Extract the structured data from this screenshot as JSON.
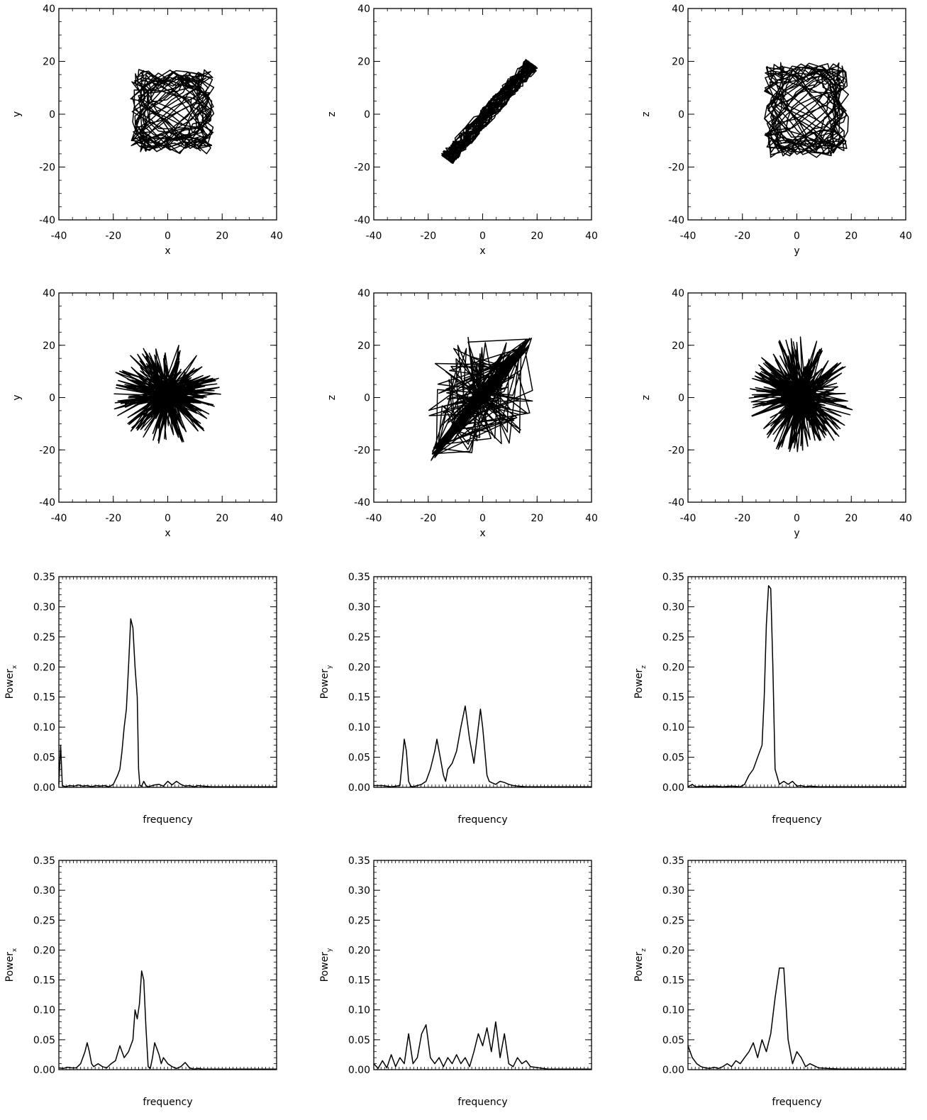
{
  "chart_data": [
    {
      "id": "p1",
      "type": "line",
      "xlabel": "x",
      "ylabel": "y",
      "xlim": [
        -40,
        40
      ],
      "ylim": [
        -40,
        40
      ],
      "xticks": [
        "-40",
        "-20",
        "0",
        "20",
        "40"
      ],
      "yticks": [
        "-40",
        "-20",
        "0",
        "20",
        "40"
      ],
      "trajectory": {
        "pattern": "scribble",
        "x_range": [
          -15,
          18
        ],
        "y_range": [
          -16,
          18
        ]
      }
    },
    {
      "id": "p2",
      "type": "line",
      "xlabel": "x",
      "ylabel": "z",
      "xlim": [
        -40,
        40
      ],
      "ylim": [
        -40,
        40
      ],
      "xticks": [
        "-40",
        "-20",
        "0",
        "20",
        "40"
      ],
      "yticks": [
        "-40",
        "-20",
        "0",
        "20",
        "40"
      ],
      "trajectory": {
        "pattern": "diagonal",
        "x_range": [
          -15,
          20
        ],
        "y_range": [
          -19,
          21
        ]
      }
    },
    {
      "id": "p3",
      "type": "line",
      "xlabel": "y",
      "ylabel": "z",
      "xlim": [
        -40,
        40
      ],
      "ylim": [
        -40,
        40
      ],
      "xticks": [
        "-40",
        "-20",
        "0",
        "20",
        "40"
      ],
      "yticks": [
        "-40",
        "-20",
        "0",
        "20",
        "40"
      ],
      "trajectory": {
        "pattern": "scribble",
        "x_range": [
          -13,
          20
        ],
        "y_range": [
          -18,
          21
        ]
      }
    },
    {
      "id": "p4",
      "type": "line",
      "xlabel": "x",
      "ylabel": "y",
      "xlim": [
        -40,
        40
      ],
      "ylim": [
        -40,
        40
      ],
      "xticks": [
        "-40",
        "-20",
        "0",
        "20",
        "40"
      ],
      "yticks": [
        "-40",
        "-20",
        "0",
        "20",
        "40"
      ],
      "trajectory": {
        "pattern": "star",
        "x_range": [
          -21,
          20
        ],
        "y_range": [
          -18,
          21
        ]
      }
    },
    {
      "id": "p5",
      "type": "line",
      "xlabel": "x",
      "ylabel": "z",
      "xlim": [
        -40,
        40
      ],
      "ylim": [
        -40,
        40
      ],
      "xticks": [
        "-40",
        "-20",
        "0",
        "20",
        "40"
      ],
      "yticks": [
        "-40",
        "-20",
        "0",
        "20",
        "40"
      ],
      "trajectory": {
        "pattern": "star-diagonal",
        "x_range": [
          -21,
          20
        ],
        "y_range": [
          -24,
          24
        ]
      }
    },
    {
      "id": "p6",
      "type": "line",
      "xlabel": "y",
      "ylabel": "z",
      "xlim": [
        -40,
        40
      ],
      "ylim": [
        -40,
        40
      ],
      "xticks": [
        "-40",
        "-20",
        "0",
        "20",
        "40"
      ],
      "yticks": [
        "-40",
        "-20",
        "0",
        "20",
        "40"
      ],
      "trajectory": {
        "pattern": "star",
        "x_range": [
          -18,
          21
        ],
        "y_range": [
          -23,
          24
        ]
      }
    },
    {
      "id": "p7",
      "type": "line",
      "xlabel": "frequency",
      "ylabel": "Power",
      "ylabel_sub": "x",
      "xlim": [
        0,
        50
      ],
      "ylim": [
        0,
        0.35
      ],
      "yticks": [
        "0.00",
        "0.05",
        "0.10",
        "0.15",
        "0.20",
        "0.25",
        "0.30",
        "0.35"
      ],
      "x": [
        0,
        0.4,
        0.8,
        1.5,
        2.5,
        3.5,
        4.5,
        5.5,
        6.5,
        7.5,
        8.5,
        9.5,
        10.5,
        11.5,
        12.5,
        13.5,
        14,
        14.5,
        15,
        15.5,
        16,
        16.5,
        17,
        17.5,
        18,
        18.3,
        18.6,
        19,
        19.5,
        20,
        20.5,
        21,
        22,
        23,
        24,
        25,
        26,
        27,
        28,
        29,
        30,
        31,
        32,
        33,
        35,
        40,
        50
      ],
      "y": [
        0.005,
        0.07,
        0.003,
        0.001,
        0.003,
        0.002,
        0.004,
        0.002,
        0.003,
        0.001,
        0.003,
        0.002,
        0.003,
        0.001,
        0.005,
        0.02,
        0.03,
        0.06,
        0.1,
        0.13,
        0.2,
        0.28,
        0.265,
        0.2,
        0.15,
        0.03,
        0.003,
        0.002,
        0.01,
        0.003,
        0.001,
        0.002,
        0.004,
        0.005,
        0.002,
        0.01,
        0.004,
        0.01,
        0.005,
        0.002,
        0.003,
        0.001,
        0.003,
        0.002,
        0.001,
        0.001,
        0.001
      ]
    },
    {
      "id": "p8",
      "type": "line",
      "xlabel": "frequency",
      "ylabel": "Power",
      "ylabel_sub": "y",
      "xlim": [
        0,
        50
      ],
      "ylim": [
        0,
        0.35
      ],
      "yticks": [
        "0.00",
        "0.05",
        "0.10",
        "0.15",
        "0.20",
        "0.25",
        "0.30",
        "0.35"
      ],
      "x": [
        0,
        2,
        4,
        6,
        6.5,
        7,
        7.5,
        8,
        8.5,
        9,
        9.5,
        10,
        11,
        12,
        13,
        14,
        14.5,
        15,
        15.5,
        16,
        16.5,
        17,
        18,
        19,
        20,
        21,
        22,
        23,
        24,
        24.5,
        25,
        25.5,
        26,
        26.5,
        27,
        28,
        29,
        30,
        31,
        32,
        33,
        35,
        40,
        45,
        50
      ],
      "y": [
        0.003,
        0.003,
        0.001,
        0.003,
        0.04,
        0.08,
        0.06,
        0.01,
        0.002,
        0.001,
        0.002,
        0.003,
        0.005,
        0.01,
        0.03,
        0.06,
        0.08,
        0.06,
        0.04,
        0.02,
        0.01,
        0.03,
        0.04,
        0.06,
        0.1,
        0.135,
        0.08,
        0.04,
        0.1,
        0.13,
        0.1,
        0.06,
        0.02,
        0.01,
        0.008,
        0.005,
        0.01,
        0.008,
        0.005,
        0.003,
        0.002,
        0.001,
        0.001,
        0.001,
        0.001
      ]
    },
    {
      "id": "p9",
      "type": "line",
      "xlabel": "frequency",
      "ylabel": "Power",
      "ylabel_sub": "z",
      "xlim": [
        0,
        50
      ],
      "ylim": [
        0,
        0.35
      ],
      "yticks": [
        "0.00",
        "0.05",
        "0.10",
        "0.15",
        "0.20",
        "0.25",
        "0.30",
        "0.35"
      ],
      "x": [
        0,
        0.5,
        1,
        1.5,
        2,
        3,
        4,
        6,
        8,
        10,
        12,
        13,
        14,
        15,
        16,
        17,
        17.5,
        18,
        18.5,
        19,
        19.5,
        20,
        21,
        22,
        23,
        24,
        25,
        26,
        27,
        28,
        30,
        32,
        35,
        40,
        50
      ],
      "y": [
        0.001,
        0.003,
        0.005,
        0.002,
        0.001,
        0.002,
        0.001,
        0.002,
        0.001,
        0.002,
        0.001,
        0.005,
        0.02,
        0.03,
        0.05,
        0.07,
        0.15,
        0.27,
        0.335,
        0.33,
        0.2,
        0.03,
        0.005,
        0.01,
        0.005,
        0.01,
        0.002,
        0.003,
        0.001,
        0.002,
        0.001,
        0.001,
        0.001,
        0.001,
        0.001
      ]
    },
    {
      "id": "p10",
      "type": "line",
      "xlabel": "frequency",
      "ylabel": "Power",
      "ylabel_sub": "x",
      "xlim": [
        0,
        50
      ],
      "ylim": [
        0,
        0.35
      ],
      "yticks": [
        "0.00",
        "0.05",
        "0.10",
        "0.15",
        "0.20",
        "0.25",
        "0.30",
        "0.35"
      ],
      "x": [
        0,
        1,
        2,
        3,
        4,
        5,
        6,
        6.5,
        7,
        7.5,
        8,
        9,
        10,
        11,
        12,
        13,
        14,
        15,
        16,
        17,
        17.5,
        18,
        18.5,
        19,
        19.5,
        20,
        20.5,
        21,
        21.5,
        22,
        22.5,
        23,
        23.5,
        24,
        25,
        26,
        27,
        28,
        29,
        30,
        31,
        32,
        33,
        35,
        40,
        45,
        50
      ],
      "y": [
        0.003,
        0.002,
        0.004,
        0.003,
        0.003,
        0.01,
        0.03,
        0.045,
        0.03,
        0.01,
        0.005,
        0.01,
        0.005,
        0.003,
        0.01,
        0.015,
        0.04,
        0.02,
        0.03,
        0.05,
        0.1,
        0.085,
        0.11,
        0.165,
        0.15,
        0.07,
        0.005,
        0.002,
        0.02,
        0.045,
        0.035,
        0.025,
        0.01,
        0.02,
        0.01,
        0.005,
        0.002,
        0.005,
        0.012,
        0.003,
        0.001,
        0.002,
        0.001,
        0.001,
        0.001,
        0.001,
        0.001
      ]
    },
    {
      "id": "p11",
      "type": "line",
      "xlabel": "frequency",
      "ylabel": "Power",
      "ylabel_sub": "y",
      "xlim": [
        0,
        50
      ],
      "ylim": [
        0,
        0.35
      ],
      "yticks": [
        "0.00",
        "0.05",
        "0.10",
        "0.15",
        "0.20",
        "0.25",
        "0.30",
        "0.35"
      ],
      "x": [
        0,
        1,
        2,
        3,
        4,
        5,
        6,
        7,
        8,
        9,
        10,
        11,
        12,
        13,
        14,
        15,
        16,
        17,
        18,
        19,
        20,
        21,
        22,
        23,
        24,
        25,
        26,
        27,
        28,
        29,
        30,
        31,
        32,
        33,
        34,
        35,
        36,
        38,
        40,
        45,
        50
      ],
      "y": [
        0.01,
        0.002,
        0.015,
        0.003,
        0.025,
        0.005,
        0.02,
        0.01,
        0.06,
        0.01,
        0.02,
        0.06,
        0.075,
        0.02,
        0.01,
        0.02,
        0.005,
        0.02,
        0.01,
        0.025,
        0.01,
        0.02,
        0.005,
        0.03,
        0.06,
        0.04,
        0.07,
        0.03,
        0.08,
        0.02,
        0.06,
        0.01,
        0.005,
        0.02,
        0.01,
        0.015,
        0.005,
        0.003,
        0.001,
        0.001,
        0.001
      ]
    },
    {
      "id": "p12",
      "type": "line",
      "xlabel": "frequency",
      "ylabel": "Power",
      "ylabel_sub": "z",
      "xlim": [
        0,
        50
      ],
      "ylim": [
        0,
        0.35
      ],
      "yticks": [
        "0.00",
        "0.05",
        "0.10",
        "0.15",
        "0.20",
        "0.25",
        "0.30",
        "0.35"
      ],
      "x": [
        0,
        1,
        2,
        3,
        4,
        5,
        6,
        7,
        8,
        9,
        10,
        11,
        12,
        13,
        14,
        15,
        16,
        17,
        18,
        19,
        20,
        21,
        22,
        23,
        24,
        25,
        26,
        27,
        28,
        30,
        32,
        35,
        40,
        45,
        50
      ],
      "y": [
        0.04,
        0.02,
        0.01,
        0.005,
        0.003,
        0.002,
        0.004,
        0.002,
        0.005,
        0.01,
        0.005,
        0.015,
        0.01,
        0.02,
        0.03,
        0.045,
        0.02,
        0.05,
        0.03,
        0.06,
        0.12,
        0.17,
        0.17,
        0.05,
        0.01,
        0.03,
        0.02,
        0.005,
        0.01,
        0.003,
        0.002,
        0.001,
        0.001,
        0.001,
        0.001
      ]
    }
  ]
}
